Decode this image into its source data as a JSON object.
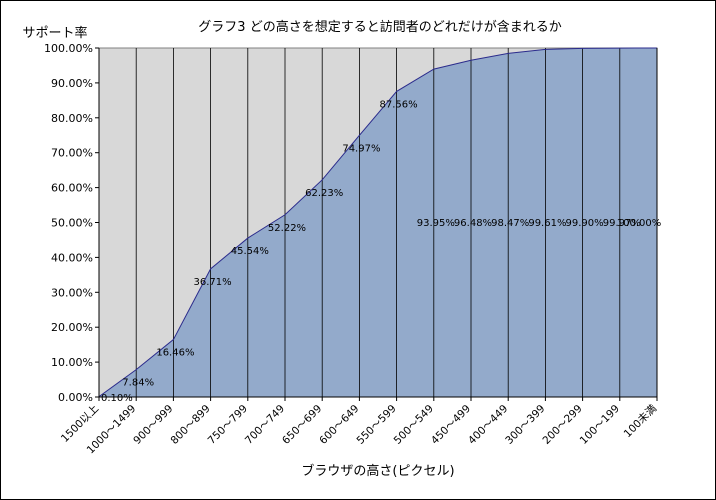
{
  "chart_data": {
    "type": "area",
    "title": "グラフ3 どの高さを想定すると訪問者のどれだけが含まれるか",
    "ylabel": "サポート率",
    "xlabel": "ブラウザの高さ(ピクセル)",
    "ylim": [
      0,
      100
    ],
    "y_ticks": [
      "0.00%",
      "10.00%",
      "20.00%",
      "30.00%",
      "40.00%",
      "50.00%",
      "60.00%",
      "70.00%",
      "80.00%",
      "90.00%",
      "100.00%"
    ],
    "categories": [
      "1500以上",
      "1000～1499",
      "900～999",
      "800～899",
      "750～799",
      "700～749",
      "650～699",
      "600～649",
      "550～599",
      "500～549",
      "450～499",
      "400～449",
      "300～399",
      "200～299",
      "100～199",
      "100未満"
    ],
    "values": [
      0.1,
      7.84,
      16.46,
      36.71,
      45.54,
      52.22,
      62.23,
      74.97,
      87.56,
      93.95,
      96.48,
      98.47,
      99.61,
      99.9,
      99.97,
      100.0
    ],
    "data_labels": [
      "0.10%",
      "7.84%",
      "16.46%",
      "36.71%",
      "45.54%",
      "52.22%",
      "62.23%",
      "74.97%",
      "87.56%",
      "93.95%",
      "96.48%",
      "98.47%",
      "99.61%",
      "99.90%",
      "99.97%",
      "100.00%"
    ],
    "grid": "vertical",
    "legend": "none",
    "colors": {
      "area_fill": "#93aacb",
      "area_line": "#2b2b8c",
      "plot_bg": "#d8d8d8",
      "grid": "#000000"
    }
  }
}
